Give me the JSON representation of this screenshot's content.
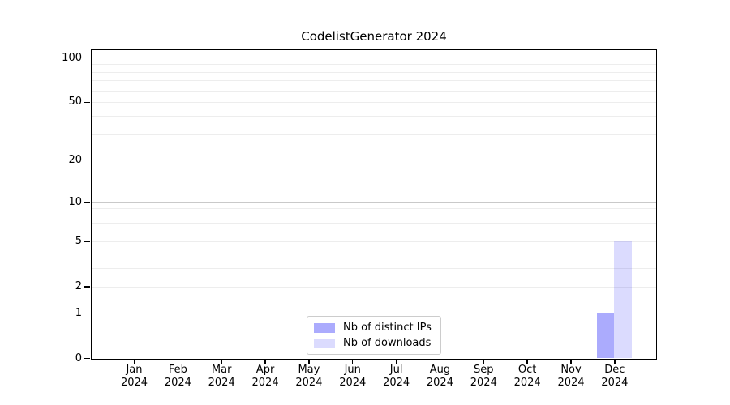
{
  "chart_data": {
    "type": "bar",
    "title": "CodelistGenerator 2024",
    "x": {
      "months": [
        "Jan",
        "Feb",
        "Mar",
        "Apr",
        "May",
        "Jun",
        "Jul",
        "Aug",
        "Sep",
        "Oct",
        "Nov",
        "Dec"
      ],
      "year": "2024"
    },
    "series": [
      {
        "name": "Nb of distinct IPs",
        "color": "rgba(0,0,250,0.33)",
        "values": [
          0,
          0,
          0,
          0,
          0,
          0,
          0,
          0,
          0,
          0,
          0,
          1
        ]
      },
      {
        "name": "Nb of downloads",
        "color": "rgba(0,0,250,0.14)",
        "values": [
          0,
          0,
          0,
          0,
          0,
          0,
          0,
          0,
          0,
          0,
          0,
          5
        ]
      }
    ],
    "y_axis": {
      "scale": "log1p",
      "ticks": [
        0,
        1,
        2,
        5,
        10,
        20,
        50,
        100
      ],
      "max": 112,
      "major_gridlines": [
        1,
        10,
        100
      ],
      "minor_gridlines": [
        2,
        3,
        4,
        5,
        6,
        7,
        8,
        9,
        20,
        30,
        40,
        50,
        60,
        70,
        80,
        90
      ]
    },
    "legend_position": "bottom-center",
    "colors": {
      "grid_major": "#c9c9c9",
      "grid_minor": "#ededed",
      "spine": "#000000",
      "background": "#ffffff"
    }
  }
}
